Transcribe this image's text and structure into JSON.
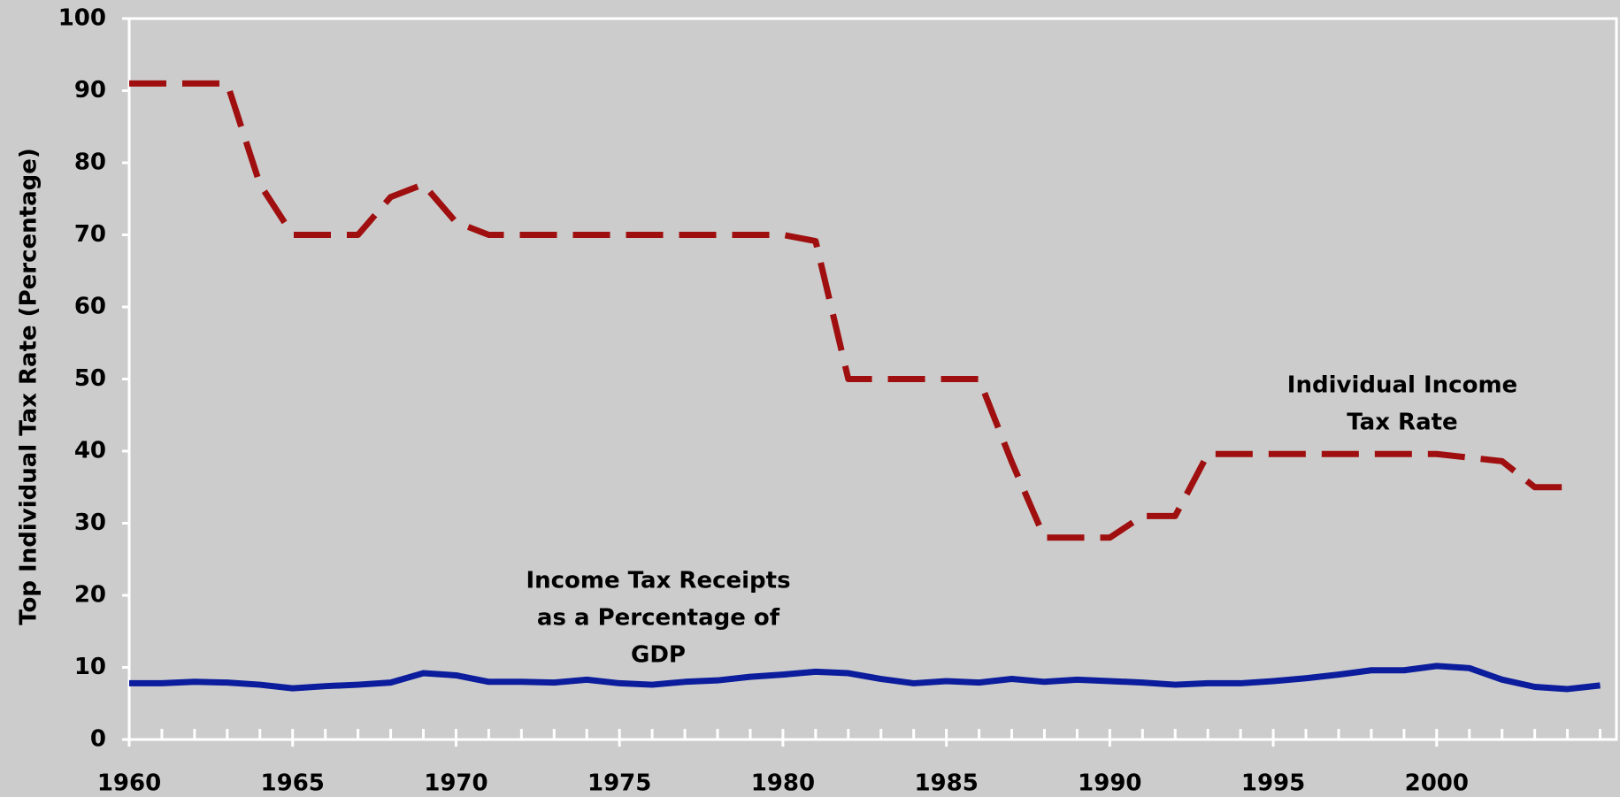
{
  "chart_data": {
    "type": "line",
    "y_label": "Top Individual Tax Rate (Percentage)",
    "x": [
      1960,
      1961,
      1962,
      1963,
      1964,
      1965,
      1966,
      1967,
      1968,
      1969,
      1970,
      1971,
      1972,
      1973,
      1974,
      1975,
      1976,
      1977,
      1978,
      1979,
      1980,
      1981,
      1982,
      1983,
      1984,
      1985,
      1986,
      1987,
      1988,
      1989,
      1990,
      1991,
      1992,
      1993,
      1994,
      1995,
      1996,
      1997,
      1998,
      1999,
      2000,
      2001,
      2002,
      2003,
      2004,
      2005
    ],
    "series": [
      {
        "color": "#a00f0f",
        "dashed": true,
        "values": [
          91,
          91,
          91,
          91,
          77,
          70,
          70,
          70,
          75.25,
          77,
          71.75,
          70,
          70,
          70,
          70,
          70,
          70,
          70,
          70,
          70,
          70,
          69.13,
          50,
          50,
          50,
          50,
          50,
          38.5,
          28,
          28,
          28,
          31,
          31,
          39.6,
          39.6,
          39.6,
          39.6,
          39.6,
          39.6,
          39.6,
          39.6,
          39.1,
          38.6,
          35,
          35,
          null
        ]
      },
      {
        "color": "#0b1c9c",
        "dashed": false,
        "values": [
          7.8,
          7.8,
          8.0,
          7.9,
          7.6,
          7.1,
          7.4,
          7.6,
          7.9,
          9.2,
          8.9,
          8.0,
          8.0,
          7.9,
          8.3,
          7.8,
          7.6,
          8.0,
          8.2,
          8.7,
          9.0,
          9.4,
          9.2,
          8.4,
          7.8,
          8.1,
          7.9,
          8.4,
          8.0,
          8.3,
          8.1,
          7.9,
          7.6,
          7.8,
          7.8,
          8.1,
          8.5,
          9.0,
          9.6,
          9.6,
          10.2,
          9.9,
          8.3,
          7.3,
          7.0,
          7.5
        ]
      }
    ],
    "annotations": [
      {
        "lines": [
          "Individual Income",
          "Tax Rate"
        ]
      },
      {
        "lines": [
          "Income Tax Receipts",
          "as a Percentage of",
          "GDP"
        ]
      }
    ],
    "xlim": [
      1960,
      2005.5
    ],
    "xticks": [
      1960,
      1965,
      1970,
      1975,
      1980,
      1985,
      1990,
      1995,
      2000
    ],
    "xminorticks": [
      1960,
      1961,
      1962,
      1963,
      1964,
      1965,
      1966,
      1967,
      1968,
      1969,
      1970,
      1971,
      1972,
      1973,
      1974,
      1975,
      1976,
      1977,
      1978,
      1979,
      1980,
      1981,
      1982,
      1983,
      1984,
      1985,
      1986,
      1987,
      1988,
      1989,
      1990,
      1991,
      1992,
      1993,
      1994,
      1995,
      1996,
      1997,
      1998,
      1999,
      2000,
      2001,
      2002,
      2003,
      2004,
      2005
    ],
    "ylim": [
      0,
      100
    ],
    "yticks": [
      0,
      10,
      20,
      30,
      40,
      50,
      60,
      70,
      80,
      90,
      100
    ],
    "grid": false
  }
}
